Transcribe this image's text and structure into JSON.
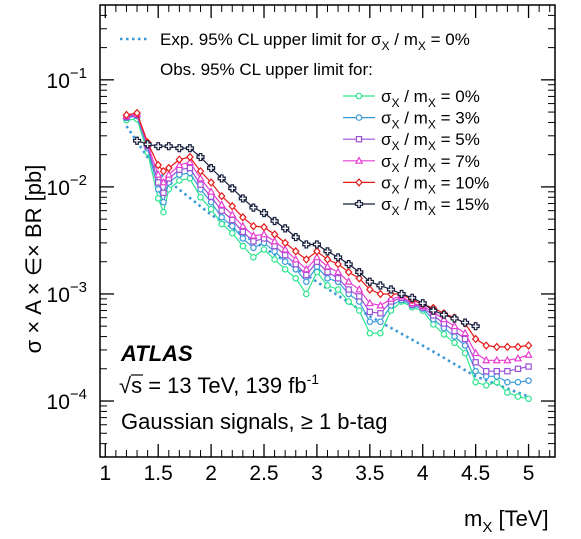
{
  "chart_data": {
    "type": "line",
    "xlabel": "m",
    "xlabel_sub": "X",
    "xlabel_unit": " [TeV]",
    "ylabel": "σ × A × ∈× BR [pb]",
    "xlim": [
      0.95,
      5.25
    ],
    "ylim": [
      3e-05,
      0.5
    ],
    "yscale": "log",
    "x_ticks": [
      1,
      1.5,
      2,
      2.5,
      3,
      3.5,
      4,
      4.5,
      5
    ],
    "x_tick_labels": [
      "1",
      "1.5",
      "2",
      "2.5",
      "3",
      "3.5",
      "4",
      "4.5",
      "5"
    ],
    "y_ticks": [
      0.0001,
      0.001,
      0.01,
      0.1
    ],
    "y_tick_labels": [
      {
        "base": "10",
        "exp": "−4"
      },
      {
        "base": "10",
        "exp": "−3"
      },
      {
        "base": "10",
        "exp": "−2"
      },
      {
        "base": "10",
        "exp": "−1"
      }
    ],
    "annotations": {
      "atlas": "ATLAS",
      "energy_sqrt": "√",
      "energy_s": "s",
      "energy_rest": " = 13 TeV, 139 fb",
      "energy_exp": "-1",
      "signals": "Gaussian signals, ≥ 1 b-tag"
    },
    "legend": {
      "exp_text": "Exp. 95% CL upper limit for σ",
      "exp_sub1": "X",
      "exp_mid": " / m",
      "exp_sub2": "X",
      "exp_end": " = 0%",
      "obs_header": "Obs. 95% CL upper limit for:"
    },
    "expected": {
      "name": "Exp. 95% CL upper limit for σX / mX = 0%",
      "color": "#3a9ad9",
      "x": [
        1.2,
        1.5,
        2.0,
        2.5,
        3.0,
        3.5,
        4.0,
        4.5,
        5.0
      ],
      "y": [
        0.037,
        0.0135,
        0.0055,
        0.0027,
        0.0013,
        0.00062,
        0.00033,
        0.00017,
        0.00011
      ]
    },
    "series": [
      {
        "label_pct": "0%",
        "color": "#2ee58f",
        "marker": "circle",
        "x": [
          1.2,
          1.3,
          1.4,
          1.5,
          1.55,
          1.6,
          1.7,
          1.8,
          1.9,
          2.0,
          2.1,
          2.2,
          2.3,
          2.4,
          2.5,
          2.6,
          2.7,
          2.8,
          2.9,
          3.0,
          3.1,
          3.2,
          3.3,
          3.4,
          3.5,
          3.6,
          3.7,
          3.8,
          3.9,
          4.0,
          4.1,
          4.2,
          4.3,
          4.4,
          4.5,
          4.6,
          4.7,
          4.8,
          4.9,
          5.0
        ],
        "y": [
          0.042,
          0.043,
          0.021,
          0.0078,
          0.0058,
          0.0095,
          0.0115,
          0.012,
          0.008,
          0.0062,
          0.0045,
          0.0037,
          0.0028,
          0.0022,
          0.0026,
          0.0021,
          0.0017,
          0.0014,
          0.001,
          0.0016,
          0.0012,
          0.0011,
          0.00085,
          0.0007,
          0.00043,
          0.00043,
          0.0007,
          0.00085,
          0.00075,
          0.0007,
          0.00052,
          0.00042,
          0.00035,
          0.00028,
          0.00015,
          0.00014,
          0.00015,
          0.00012,
          0.00011,
          0.000105
        ]
      },
      {
        "label_pct": "3%",
        "color": "#3a9ad9",
        "marker": "circle",
        "x": [
          1.2,
          1.3,
          1.4,
          1.5,
          1.55,
          1.6,
          1.7,
          1.8,
          1.9,
          2.0,
          2.1,
          2.2,
          2.3,
          2.4,
          2.5,
          2.6,
          2.7,
          2.8,
          2.9,
          3.0,
          3.1,
          3.2,
          3.3,
          3.4,
          3.5,
          3.6,
          3.7,
          3.8,
          3.9,
          4.0,
          4.1,
          4.2,
          4.3,
          4.4,
          4.5,
          4.6,
          4.7,
          4.8,
          4.9,
          5.0
        ],
        "y": [
          0.044,
          0.046,
          0.023,
          0.0095,
          0.0072,
          0.011,
          0.013,
          0.0135,
          0.0095,
          0.0072,
          0.0052,
          0.0043,
          0.0033,
          0.0027,
          0.003,
          0.0025,
          0.002,
          0.0017,
          0.0013,
          0.0018,
          0.0014,
          0.0013,
          0.001,
          0.00085,
          0.00055,
          0.00055,
          0.00078,
          0.00088,
          0.00078,
          0.00073,
          0.00058,
          0.00048,
          0.0004,
          0.00033,
          0.00019,
          0.00017,
          0.00017,
          0.00015,
          0.00015,
          0.000155
        ]
      },
      {
        "label_pct": "5%",
        "color": "#9b4fd6",
        "marker": "square",
        "x": [
          1.2,
          1.3,
          1.4,
          1.5,
          1.55,
          1.6,
          1.7,
          1.8,
          1.9,
          2.0,
          2.1,
          2.2,
          2.3,
          2.4,
          2.5,
          2.6,
          2.7,
          2.8,
          2.9,
          3.0,
          3.1,
          3.2,
          3.3,
          3.4,
          3.5,
          3.6,
          3.7,
          3.8,
          3.9,
          4.0,
          4.1,
          4.2,
          4.3,
          4.4,
          4.5,
          4.6,
          4.7,
          4.8,
          4.9,
          5.0
        ],
        "y": [
          0.045,
          0.047,
          0.024,
          0.011,
          0.0088,
          0.012,
          0.0145,
          0.015,
          0.0105,
          0.0081,
          0.006,
          0.0049,
          0.0038,
          0.0031,
          0.0033,
          0.0028,
          0.0023,
          0.0019,
          0.0015,
          0.002,
          0.0016,
          0.0014,
          0.0011,
          0.00095,
          0.00068,
          0.00066,
          0.00085,
          0.00092,
          0.0008,
          0.00075,
          0.00063,
          0.00053,
          0.00045,
          0.00038,
          0.00023,
          0.00019,
          0.00019,
          0.00019,
          0.0002,
          0.00021
        ]
      },
      {
        "label_pct": "7%",
        "color": "#e83dd0",
        "marker": "triangle",
        "x": [
          1.2,
          1.3,
          1.4,
          1.5,
          1.55,
          1.6,
          1.7,
          1.8,
          1.9,
          2.0,
          2.1,
          2.2,
          2.3,
          2.4,
          2.5,
          2.6,
          2.7,
          2.8,
          2.9,
          3.0,
          3.1,
          3.2,
          3.3,
          3.4,
          3.5,
          3.6,
          3.7,
          3.8,
          3.9,
          4.0,
          4.1,
          4.2,
          4.3,
          4.4,
          4.5,
          4.6,
          4.7,
          4.8,
          4.9,
          5.0
        ],
        "y": [
          0.046,
          0.048,
          0.025,
          0.013,
          0.011,
          0.013,
          0.016,
          0.017,
          0.012,
          0.009,
          0.0068,
          0.0055,
          0.0043,
          0.0035,
          0.0036,
          0.0031,
          0.0026,
          0.0021,
          0.0017,
          0.0022,
          0.0018,
          0.0016,
          0.0013,
          0.0011,
          0.00082,
          0.00078,
          0.0009,
          0.00095,
          0.00082,
          0.00077,
          0.00068,
          0.00058,
          0.0005,
          0.00043,
          0.00028,
          0.00024,
          0.00024,
          0.00024,
          0.00025,
          0.00027
        ]
      },
      {
        "label_pct": "10%",
        "color": "#e61919",
        "marker": "diamond",
        "x": [
          1.2,
          1.3,
          1.4,
          1.5,
          1.55,
          1.6,
          1.7,
          1.8,
          1.9,
          2.0,
          2.1,
          2.2,
          2.3,
          2.4,
          2.5,
          2.6,
          2.7,
          2.8,
          2.9,
          3.0,
          3.1,
          3.2,
          3.3,
          3.4,
          3.5,
          3.6,
          3.7,
          3.8,
          3.9,
          4.0,
          4.1,
          4.2,
          4.3,
          4.4,
          4.5,
          4.6,
          4.7,
          4.8,
          4.9,
          5.0
        ],
        "y": [
          0.047,
          0.049,
          0.026,
          0.016,
          0.014,
          0.015,
          0.018,
          0.019,
          0.014,
          0.011,
          0.0082,
          0.0066,
          0.0052,
          0.0043,
          0.0042,
          0.0036,
          0.003,
          0.0025,
          0.0021,
          0.0025,
          0.0021,
          0.0019,
          0.0016,
          0.0014,
          0.0011,
          0.001,
          0.001,
          0.001,
          0.00088,
          0.0008,
          0.00074,
          0.00066,
          0.0006,
          0.00053,
          0.00038,
          0.00033,
          0.00032,
          0.00032,
          0.00032,
          0.00033
        ]
      },
      {
        "label_pct": "15%",
        "color": "#151d3b",
        "marker": "plus",
        "x": [
          1.3,
          1.4,
          1.5,
          1.6,
          1.7,
          1.8,
          1.9,
          2.0,
          2.1,
          2.2,
          2.3,
          2.4,
          2.5,
          2.6,
          2.7,
          2.8,
          2.9,
          3.0,
          3.1,
          3.2,
          3.3,
          3.4,
          3.5,
          3.6,
          3.7,
          3.8,
          3.9,
          4.0,
          4.1,
          4.2,
          4.3,
          4.4,
          4.5
        ],
        "y": [
          0.027,
          0.025,
          0.024,
          0.024,
          0.023,
          0.023,
          0.019,
          0.015,
          0.012,
          0.0097,
          0.0078,
          0.0064,
          0.0057,
          0.0048,
          0.0041,
          0.0034,
          0.0029,
          0.0029,
          0.0025,
          0.0022,
          0.0019,
          0.0016,
          0.0013,
          0.0012,
          0.0011,
          0.001,
          0.00092,
          0.00082,
          0.0007,
          0.00064,
          0.00059,
          0.00054,
          0.0005
        ]
      }
    ]
  }
}
